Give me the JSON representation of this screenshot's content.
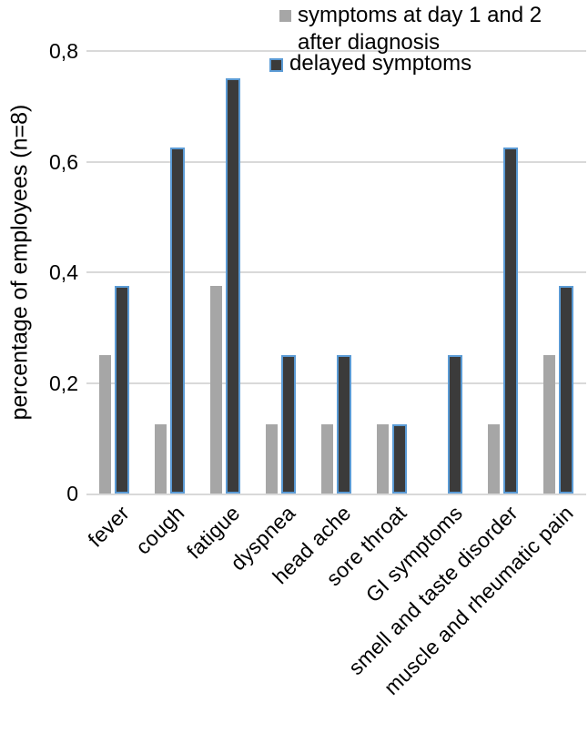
{
  "figure": {
    "background": "#ffffff",
    "text_color": "#000000"
  },
  "chart_data": {
    "type": "bar",
    "title": "",
    "xlabel": "",
    "ylabel": "percentage of employees (n=8)",
    "ylim": [
      0,
      0.8
    ],
    "yticks": [
      0,
      0.2,
      0.4,
      0.6,
      0.8
    ],
    "ytick_labels": [
      "0",
      "0,2",
      "0,4",
      "0,6",
      "0,8"
    ],
    "decimal_separator": ",",
    "grid": true,
    "gridline_color": "#d9d9d9",
    "axis_line_color": "#d9d9d9",
    "legend_position": "top-right",
    "categories": [
      "fever",
      "cough",
      "fatigue",
      "dyspnea",
      "head ache",
      "sore throat",
      "GI symptoms",
      "smell and taste disorder",
      "muscle and rheumatic pain"
    ],
    "series": [
      {
        "name": "symptoms at day 1 and 2 after diagnosis",
        "color": "#a6a6a6",
        "values": [
          0.25,
          0.125,
          0.375,
          0.125,
          0.125,
          0.125,
          0,
          0.125,
          0.25
        ]
      },
      {
        "name": "delayed symptoms",
        "color": "#3b3b3b",
        "outline_color": "#5b9bd5",
        "values": [
          0.375,
          0.625,
          0.75,
          0.25,
          0.25,
          0.125,
          0.25,
          0.625,
          0.375
        ]
      }
    ]
  }
}
